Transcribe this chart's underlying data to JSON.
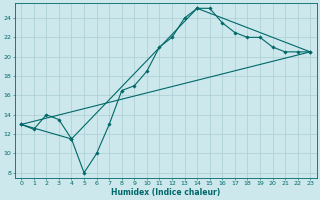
{
  "title": "",
  "xlabel": "Humidex (Indice chaleur)",
  "bg_color": "#cce8ec",
  "line_color": "#006868",
  "grid_color": "#aacfd4",
  "xlim": [
    -0.5,
    23.5
  ],
  "ylim": [
    7.5,
    25.5
  ],
  "yticks": [
    8,
    10,
    12,
    14,
    16,
    18,
    20,
    22,
    24
  ],
  "xticks": [
    0,
    1,
    2,
    3,
    4,
    5,
    6,
    7,
    8,
    9,
    10,
    11,
    12,
    13,
    14,
    15,
    16,
    17,
    18,
    19,
    20,
    21,
    22,
    23
  ],
  "line1_x": [
    0,
    1,
    2,
    3,
    4,
    5,
    6,
    7,
    8,
    9,
    10,
    11,
    12,
    13,
    14,
    15,
    16,
    17,
    18,
    19,
    20,
    21,
    22,
    23
  ],
  "line1_y": [
    13,
    12.5,
    14,
    13.5,
    11.5,
    8,
    10,
    13,
    16.5,
    17,
    18.5,
    21,
    22,
    24,
    25,
    25,
    23.5,
    22.5,
    22,
    22,
    21,
    20.5,
    20.5,
    20.5
  ],
  "line2_x": [
    0,
    4,
    14,
    23
  ],
  "line2_y": [
    13,
    11.5,
    25,
    20.5
  ],
  "line3_x": [
    0,
    23
  ],
  "line3_y": [
    13,
    20.5
  ],
  "marker_size": 1.8,
  "line_width": 0.8,
  "tick_fontsize": 4.5,
  "xlabel_fontsize": 5.5
}
